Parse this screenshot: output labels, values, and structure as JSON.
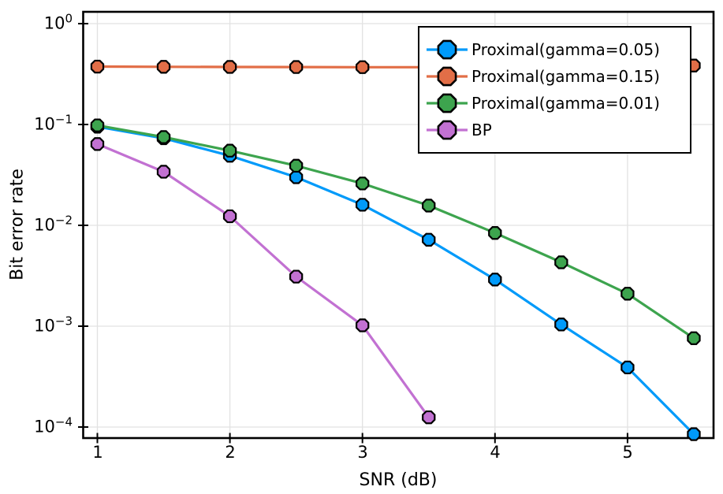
{
  "figure": {
    "xticks": [
      "1",
      "2",
      "3",
      "4",
      "5"
    ],
    "yticks": [
      {
        "base": "10",
        "exp": "0"
      },
      {
        "base": "10",
        "exp": "−1"
      },
      {
        "base": "10",
        "exp": "−2"
      },
      {
        "base": "10",
        "exp": "−3"
      },
      {
        "base": "10",
        "exp": "−4"
      }
    ]
  },
  "colors": {
    "background": "#FFFFFF",
    "frame": "#000000",
    "grid": "#E2E2E2",
    "marker_stroke": "#000000"
  },
  "chart_data": {
    "type": "line",
    "title": "",
    "xlabel": "SNR (dB)",
    "ylabel": "Bit error rate",
    "x": [
      1.0,
      1.5,
      2.0,
      2.5,
      3.0,
      3.5,
      4.0,
      4.5,
      5.0,
      5.5
    ],
    "series": [
      {
        "name": "Proximal(gamma=0.05)",
        "color": "#009AFA",
        "values": [
          0.095,
          0.073,
          0.049,
          0.03,
          0.016,
          0.0072,
          0.0029,
          0.00104,
          0.00039,
          8.5e-05
        ]
      },
      {
        "name": "Proximal(gamma=0.15)",
        "color": "#E26E47",
        "values": [
          0.375,
          0.373,
          0.372,
          0.371,
          0.37,
          0.37,
          0.371,
          0.373,
          0.377,
          0.384
        ]
      },
      {
        "name": "Proximal(gamma=0.01)",
        "color": "#3DA44E",
        "values": [
          0.098,
          0.075,
          0.055,
          0.039,
          0.026,
          0.0157,
          0.0084,
          0.0043,
          0.0021,
          0.00076
        ]
      },
      {
        "name": "BP",
        "color": "#C271D2",
        "values": [
          0.064,
          0.034,
          0.0123,
          0.0031,
          0.00102,
          0.000125
        ]
      }
    ],
    "xticks": [
      1,
      2,
      3,
      4,
      5
    ],
    "yticks_log10": [
      0,
      -1,
      -2,
      -3,
      -4
    ],
    "xlim": [
      0.893,
      5.649
    ],
    "ylim_log10": [
      -4.109,
      0.117
    ],
    "yscale": "log10",
    "grid": true,
    "legend_position": "top-right",
    "marker": "octagon"
  }
}
